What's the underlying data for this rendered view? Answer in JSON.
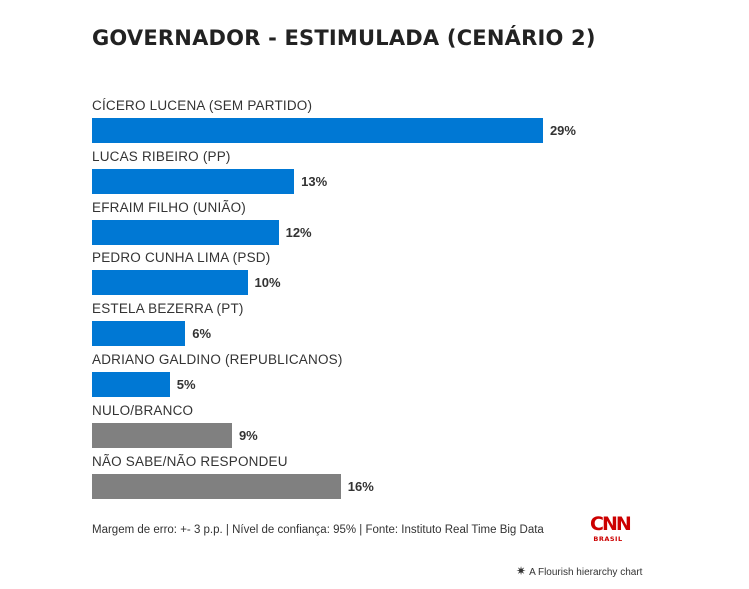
{
  "chart_data": {
    "type": "bar",
    "orientation": "horizontal",
    "title": "GOVERNADOR - ESTIMULADA (CENÁRIO 2)",
    "xlim": [
      0,
      100
    ],
    "grid": false,
    "categories": [
      "CÍCERO LUCENA (SEM PARTIDO)",
      "LUCAS RIBEIRO (PP)",
      "EFRAIM FILHO (UNIÃO)",
      "PEDRO CUNHA LIMA (PSD)",
      "ESTELA BEZERRA (PT)",
      "ADRIANO GALDINO (REPUBLICANOS)",
      "NULO/BRANCO",
      "NÃO SABE/NÃO RESPONDEU"
    ],
    "values": [
      29,
      13,
      12,
      10,
      6,
      5,
      9,
      16
    ],
    "value_labels": [
      "29%",
      "13%",
      "12%",
      "10%",
      "6%",
      "5%",
      "9%",
      "16%"
    ],
    "bar_colors": [
      "#0078d4",
      "#0078d4",
      "#0078d4",
      "#0078d4",
      "#0078d4",
      "#0078d4",
      "#808080",
      "#808080"
    ]
  },
  "footer": {
    "note": "Margem de erro: +- 3 p.p. | Nível de confiança: 95% | Fonte: Instituto Real Time Big Data"
  },
  "logo": {
    "main": "CNN",
    "sub": "BRASIL"
  },
  "credit": {
    "icon": "flourish-star-icon",
    "text": "A Flourish hierarchy chart"
  }
}
